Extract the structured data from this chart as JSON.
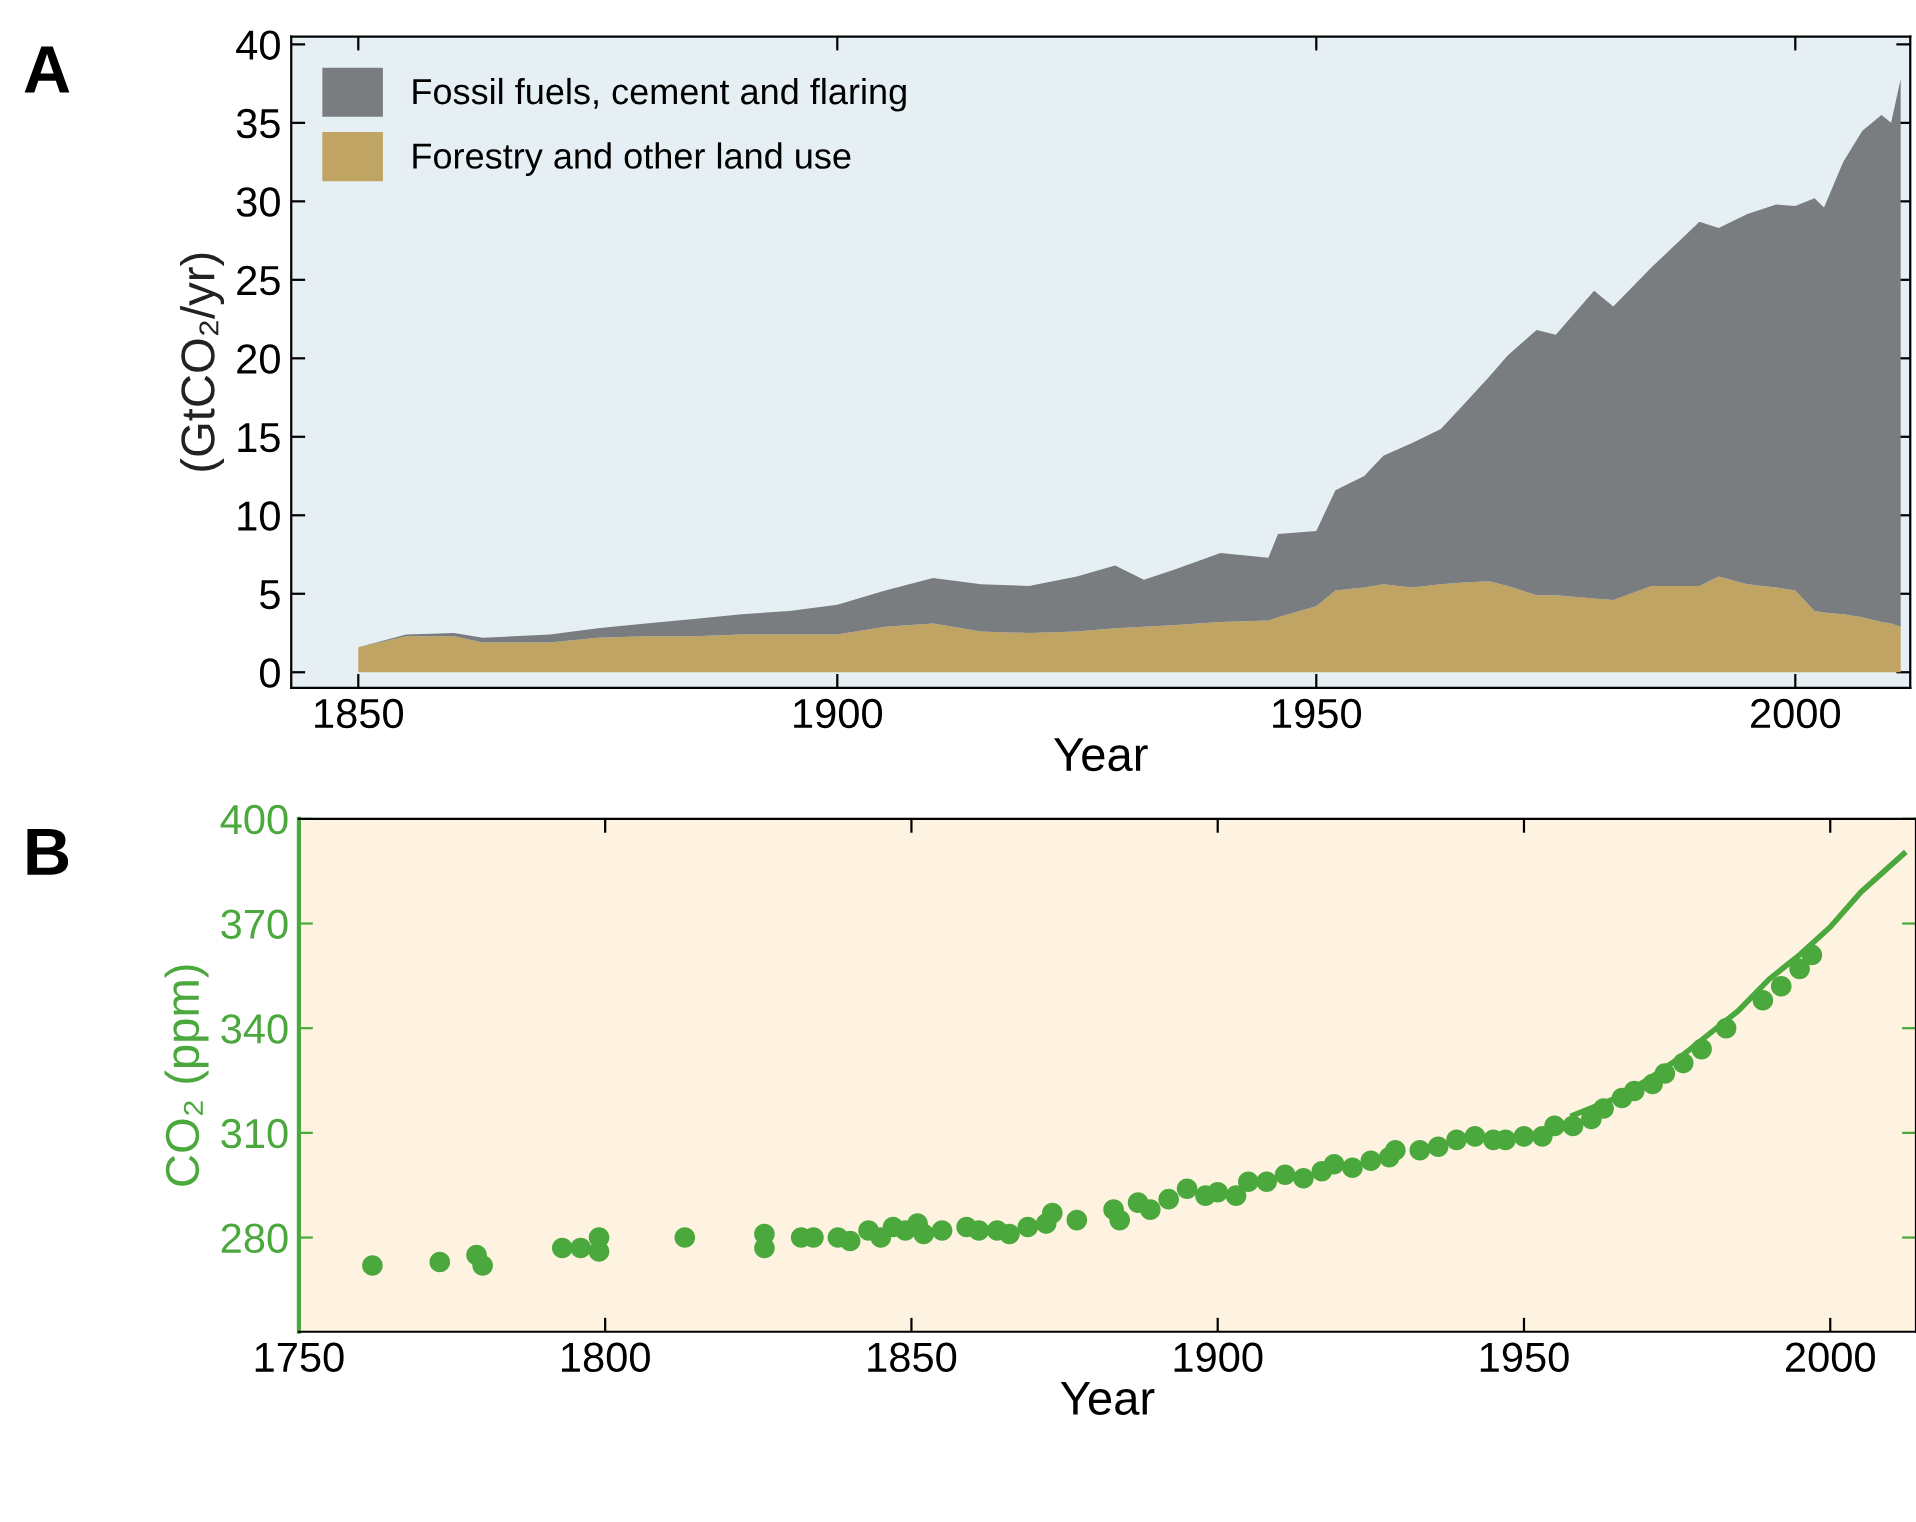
{
  "chart_data": [
    {
      "type": "area",
      "title": "A",
      "xlabel": "Year",
      "ylabel": "(GtCO₂/yr)",
      "stacked": true,
      "legend": "top left",
      "grid": false,
      "x": [
        1850,
        1855,
        1860,
        1863,
        1870,
        1875,
        1880,
        1885,
        1890,
        1895,
        1900,
        1905,
        1910,
        1915,
        1920,
        1925,
        1929,
        1932,
        1935,
        1940,
        1945,
        1946,
        1950,
        1952,
        1955,
        1957,
        1960,
        1963,
        1965,
        1968,
        1970,
        1973,
        1975,
        1979,
        1981,
        1985,
        1990,
        1992,
        1995,
        1998,
        2000,
        2002,
        2003,
        2005,
        2007,
        2009,
        2010,
        2011
      ],
      "xlim": [
        1843,
        2012
      ],
      "xticks": [
        1850,
        1900,
        1950,
        2000
      ],
      "ylim": [
        -1,
        40.5
      ],
      "yticks": [
        0,
        5,
        10,
        15,
        20,
        25,
        30,
        35,
        40
      ],
      "series": [
        {
          "name": "Forestry and other land use",
          "color": "#bfa463",
          "values": [
            1.6,
            2.3,
            2.3,
            1.9,
            1.9,
            2.2,
            2.3,
            2.3,
            2.4,
            2.4,
            2.4,
            2.9,
            3.1,
            2.6,
            2.5,
            2.6,
            2.8,
            2.9,
            3.0,
            3.2,
            3.3,
            3.5,
            4.2,
            5.2,
            5.4,
            5.6,
            5.4,
            5.6,
            5.7,
            5.8,
            5.5,
            4.9,
            4.9,
            4.7,
            4.6,
            5.5,
            5.5,
            6.1,
            5.6,
            5.4,
            5.2,
            3.9,
            3.8,
            3.7,
            3.5,
            3.2,
            3.1,
            2.9
          ]
        },
        {
          "name": "Fossil fuels, cement and flaring",
          "color": "#7a7d80",
          "values": [
            0.0,
            0.1,
            0.2,
            0.3,
            0.5,
            0.6,
            0.8,
            1.1,
            1.3,
            1.5,
            1.9,
            2.3,
            2.9,
            3.0,
            3.0,
            3.5,
            4.0,
            3.0,
            3.5,
            4.4,
            4.0,
            5.3,
            4.8,
            6.4,
            7.1,
            8.2,
            9.2,
            9.9,
            11.1,
            13.0,
            14.7,
            16.9,
            16.6,
            19.6,
            18.7,
            20.3,
            23.2,
            22.2,
            23.6,
            24.4,
            24.5,
            26.3,
            25.8,
            28.8,
            31.0,
            32.3,
            31.9,
            34.9
          ]
        }
      ]
    },
    {
      "type": "scatter",
      "title": "B",
      "xlabel": "Year",
      "ylabel": "CO₂ (ppm)",
      "legend": false,
      "grid": false,
      "xlim": [
        1750,
        2014
      ],
      "xticks": [
        1750,
        1800,
        1850,
        1900,
        1950,
        2000
      ],
      "ylim": [
        253,
        400
      ],
      "yticks": [
        280,
        310,
        340,
        370,
        400
      ],
      "series": [
        {
          "color": "#4aa83c",
          "marker": "circle",
          "x": [
            1762,
            1773,
            1779,
            1780,
            1793,
            1796,
            1799,
            1799,
            1813,
            1826,
            1826,
            1832,
            1834,
            1838,
            1840,
            1843,
            1845,
            1847,
            1849,
            1851,
            1852,
            1855,
            1859,
            1861,
            1864,
            1866,
            1869,
            1872,
            1873,
            1877,
            1883,
            1884,
            1887,
            1889,
            1892,
            1895,
            1898,
            1900,
            1903,
            1905,
            1908,
            1911,
            1914,
            1917,
            1919,
            1922,
            1925,
            1928,
            1929,
            1933,
            1936,
            1939,
            1942,
            1945,
            1947,
            1950,
            1953,
            1955,
            1958,
            1961,
            1963,
            1966,
            1968,
            1971,
            1973,
            1976,
            1979,
            1983,
            1989,
            1992,
            1995,
            1997
          ],
          "values": [
            272,
            273,
            275,
            272,
            277,
            277,
            280,
            276,
            280,
            277,
            281,
            280,
            280,
            280,
            279,
            282,
            280,
            283,
            282,
            284,
            281,
            282,
            283,
            282,
            282,
            281,
            283,
            284,
            287,
            285,
            288,
            285,
            290,
            288,
            291,
            294,
            292,
            293,
            292,
            296,
            296,
            298,
            297,
            299,
            301,
            300,
            302,
            303,
            305,
            305,
            306,
            308,
            309,
            308,
            308,
            309,
            309,
            312,
            312,
            314,
            317,
            320,
            322,
            324,
            327,
            330,
            334,
            340,
            348,
            352,
            357,
            361
          ]
        },
        {
          "type": "line",
          "marker": "none",
          "color": "#4aa83c",
          "x": [
            1958,
            1965,
            1970,
            1975,
            1980,
            1985,
            1990,
            1995,
            2000,
            2005,
            2012
          ],
          "values": [
            315,
            320,
            325,
            331,
            338,
            345,
            354,
            361,
            369,
            379,
            390
          ]
        }
      ]
    }
  ]
}
